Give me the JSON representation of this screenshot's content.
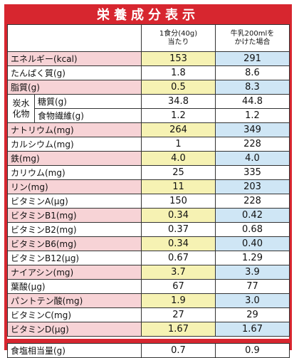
{
  "title": "栄養成分表示",
  "header": {
    "col1": "1食分(40g)\n当たり",
    "col2": "牛乳200mlを\nかけた場合"
  },
  "rows": [
    {
      "label": "エネルギー(kcal)",
      "v1": "153",
      "v2": "291",
      "bg": "pink"
    },
    {
      "label": "たんぱく質(g)",
      "v1": "1.8",
      "v2": "8.6",
      "bg": "white"
    },
    {
      "label": "脂質(g)",
      "v1": "0.5",
      "v2": "8.3",
      "bg": "pink"
    }
  ],
  "carb": {
    "group_label": "炭水\n化物",
    "sub1": {
      "label": "糖質(g)",
      "v1": "34.8",
      "v2": "44.8"
    },
    "sub2": {
      "label": "食物繊維(g)",
      "v1": "1.2",
      "v2": "1.2"
    }
  },
  "rows2": [
    {
      "label": "ナトリウム(mg)",
      "v1": "264",
      "v2": "349",
      "bg": "pink"
    },
    {
      "label": "カルシウム(mg)",
      "v1": "1",
      "v2": "228",
      "bg": "white"
    },
    {
      "label": "鉄(mg)",
      "v1": "4.0",
      "v2": "4.0",
      "bg": "pink"
    },
    {
      "label": "カリウム(mg)",
      "v1": "25",
      "v2": "335",
      "bg": "white"
    },
    {
      "label": "リン(mg)",
      "v1": "11",
      "v2": "203",
      "bg": "pink"
    },
    {
      "label": "ビタミンA(μg)",
      "v1": "150",
      "v2": "228",
      "bg": "white"
    },
    {
      "label": "ビタミンB1(mg)",
      "v1": "0.34",
      "v2": "0.42",
      "bg": "pink"
    },
    {
      "label": "ビタミンB2(mg)",
      "v1": "0.37",
      "v2": "0.68",
      "bg": "white"
    },
    {
      "label": "ビタミンB6(mg)",
      "v1": "0.34",
      "v2": "0.40",
      "bg": "pink"
    },
    {
      "label": "ビタミンB12(μg)",
      "v1": "0.67",
      "v2": "1.29",
      "bg": "white"
    },
    {
      "label": "ナイアシン(mg)",
      "v1": "3.7",
      "v2": "3.9",
      "bg": "pink"
    },
    {
      "label": "葉酸(μg)",
      "v1": "67",
      "v2": "77",
      "bg": "white"
    },
    {
      "label": "パントテン酸(mg)",
      "v1": "1.9",
      "v2": "3.0",
      "bg": "pink"
    },
    {
      "label": "ビタミンC(mg)",
      "v1": "27",
      "v2": "29",
      "bg": "white"
    },
    {
      "label": "ビタミンD(μg)",
      "v1": "1.67",
      "v2": "1.67",
      "bg": "pink"
    }
  ],
  "footer": {
    "label": "食塩相当量(g)",
    "v1": "0.7",
    "v2": "0.9"
  },
  "colors": {
    "frame": "#d7262f",
    "pink": "#f7d3d6",
    "yellow": "#f6f2b3",
    "blue": "#cfe6f5"
  }
}
